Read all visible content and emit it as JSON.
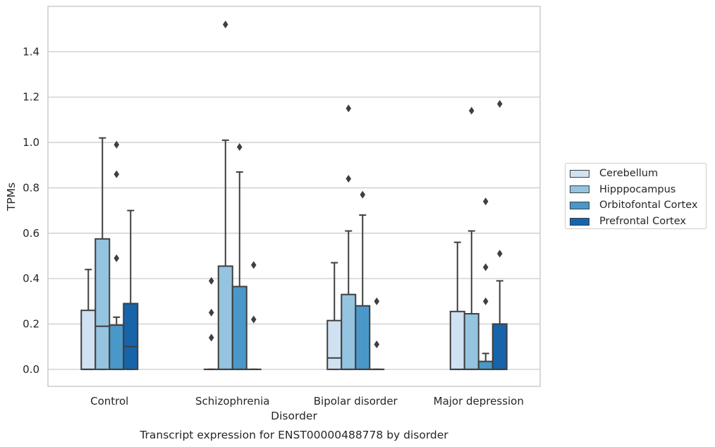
{
  "chart_data": {
    "type": "box",
    "xlabel": "Disorder",
    "ylabel": "TPMs",
    "caption": "Transcript expression for ENST00000488778 by disorder",
    "categories": [
      "Control",
      "Schizophrenia",
      "Bipolar disorder",
      "Major depression"
    ],
    "ylim": [
      -0.075,
      1.6
    ],
    "yticks": [
      "0.0",
      "0.2",
      "0.4",
      "0.6",
      "0.8",
      "1.0",
      "1.2",
      "1.4"
    ],
    "ytick_values": [
      0,
      0.2,
      0.4,
      0.6,
      0.8,
      1.0,
      1.2,
      1.4
    ],
    "grid": "horizontal",
    "legend_position": "right",
    "series": [
      {
        "name": "Cerebellum",
        "color": "#d0e1f2",
        "boxes": [
          {
            "q1": 0,
            "median": 0,
            "q3": 0.26,
            "whisker_low": 0,
            "whisker_high": 0.44,
            "outliers": []
          },
          {
            "q1": 0,
            "median": 0,
            "q3": 0,
            "whisker_low": 0,
            "whisker_high": 0,
            "outliers": [
              0.14,
              0.25,
              0.39
            ]
          },
          {
            "q1": 0,
            "median": 0.05,
            "q3": 0.215,
            "whisker_low": 0,
            "whisker_high": 0.47,
            "outliers": []
          },
          {
            "q1": 0,
            "median": 0,
            "q3": 0.255,
            "whisker_low": 0,
            "whisker_high": 0.56,
            "outliers": []
          }
        ]
      },
      {
        "name": "Hipppocampus",
        "color": "#94c4df",
        "boxes": [
          {
            "q1": 0,
            "median": 0.19,
            "q3": 0.575,
            "whisker_low": 0,
            "whisker_high": 1.02,
            "outliers": []
          },
          {
            "q1": 0,
            "median": 0,
            "q3": 0.455,
            "whisker_low": 0,
            "whisker_high": 1.01,
            "outliers": [
              1.52
            ]
          },
          {
            "q1": 0,
            "median": 0,
            "q3": 0.33,
            "whisker_low": 0,
            "whisker_high": 0.61,
            "outliers": [
              0.84,
              1.15
            ]
          },
          {
            "q1": 0,
            "median": 0,
            "q3": 0.245,
            "whisker_low": 0,
            "whisker_high": 0.61,
            "outliers": [
              1.14
            ]
          }
        ]
      },
      {
        "name": "Orbitofontal Cortex",
        "color": "#4a98c9",
        "boxes": [
          {
            "q1": 0,
            "median": 0,
            "q3": 0.195,
            "whisker_low": 0,
            "whisker_high": 0.23,
            "outliers": [
              0.49,
              0.86,
              0.99
            ]
          },
          {
            "q1": 0,
            "median": 0,
            "q3": 0.365,
            "whisker_low": 0,
            "whisker_high": 0.87,
            "outliers": [
              0.98
            ]
          },
          {
            "q1": 0,
            "median": 0,
            "q3": 0.28,
            "whisker_low": 0,
            "whisker_high": 0.68,
            "outliers": [
              0.77
            ]
          },
          {
            "q1": 0,
            "median": 0,
            "q3": 0.035,
            "whisker_low": 0,
            "whisker_high": 0.07,
            "outliers": [
              0.3,
              0.45,
              0.74
            ]
          }
        ]
      },
      {
        "name": "Prefrontal Cortex",
        "color": "#1764ab",
        "boxes": [
          {
            "q1": 0,
            "median": 0.1,
            "q3": 0.29,
            "whisker_low": 0,
            "whisker_high": 0.7,
            "outliers": []
          },
          {
            "q1": 0,
            "median": 0,
            "q3": 0,
            "whisker_low": 0,
            "whisker_high": 0,
            "outliers": [
              0.22,
              0.46
            ]
          },
          {
            "q1": 0,
            "median": 0,
            "q3": 0,
            "whisker_low": 0,
            "whisker_high": 0,
            "outliers": [
              0.11,
              0.3
            ]
          },
          {
            "q1": 0,
            "median": 0,
            "q3": 0.2,
            "whisker_low": 0,
            "whisker_high": 0.39,
            "outliers": [
              0.51,
              1.17
            ]
          }
        ]
      }
    ]
  },
  "style": {
    "grid_color": "#cccccc",
    "frame_color": "#cccccc",
    "line_color": "#3f3f3f",
    "text_color": "#262626"
  }
}
